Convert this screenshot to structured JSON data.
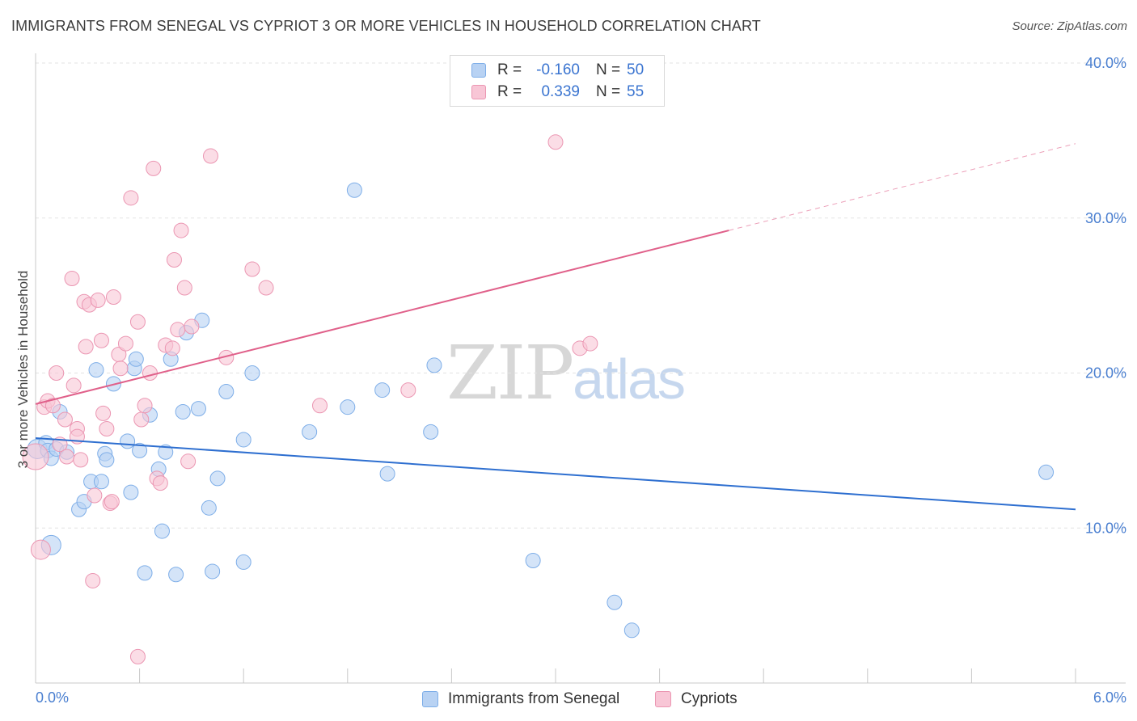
{
  "title": "IMMIGRANTS FROM SENEGAL VS CYPRIOT 3 OR MORE VEHICLES IN HOUSEHOLD CORRELATION CHART",
  "source": "Source: ZipAtlas.com",
  "watermark": {
    "zip": "ZIP",
    "atlas": "atlas"
  },
  "colors": {
    "blue_fill": "#b8d2f3",
    "blue_stroke": "#7eaee8",
    "blue_line": "#2e6fd0",
    "pink_fill": "#f8c6d6",
    "pink_stroke": "#eb96b2",
    "pink_line": "#e0608a",
    "tick_text": "#4a7fd0",
    "grid": "#e3e3e3"
  },
  "legend_top": {
    "rows": [
      {
        "r_label": "R =",
        "r_value": "-0.160",
        "n_label": "N =",
        "n_value": "50"
      },
      {
        "r_label": "R =",
        "r_value": "0.339",
        "n_label": "N =",
        "n_value": "55"
      }
    ]
  },
  "legend_bottom": {
    "items": [
      "Immigrants from Senegal",
      "Cypriots"
    ]
  },
  "chart_data": {
    "type": "scatter",
    "title": "IMMIGRANTS FROM SENEGAL VS CYPRIOT 3 OR MORE VEHICLES IN HOUSEHOLD CORRELATION CHART",
    "xlabel": "",
    "ylabel": "3 or more Vehicles in Household",
    "xlim": [
      0,
      6
    ],
    "ylim": [
      0,
      40
    ],
    "x_tick_labels": [
      "0.0%",
      "6.0%"
    ],
    "y_ticks": [
      10,
      20,
      30,
      40
    ],
    "y_tick_labels": [
      "10.0%",
      "20.0%",
      "30.0%",
      "40.0%"
    ],
    "grid": true,
    "legend_position": "top-center",
    "series": [
      {
        "name": "Immigrants from Senegal",
        "color": "#b8d2f3",
        "trend": {
          "x0": 0,
          "y0": 15.8,
          "x1": 6,
          "y1": 11.2
        },
        "points": [
          [
            0.01,
            15.1,
            "L"
          ],
          [
            0.06,
            15.5
          ],
          [
            0.07,
            15.0
          ],
          [
            0.09,
            14.5
          ],
          [
            0.12,
            15.1
          ],
          [
            0.14,
            17.5
          ],
          [
            0.18,
            14.9
          ],
          [
            0.25,
            11.2
          ],
          [
            0.28,
            11.7
          ],
          [
            0.32,
            13.0
          ],
          [
            0.35,
            20.2
          ],
          [
            0.38,
            13.0
          ],
          [
            0.4,
            14.8
          ],
          [
            0.41,
            14.4
          ],
          [
            0.45,
            19.3
          ],
          [
            0.53,
            15.6
          ],
          [
            0.55,
            12.3
          ],
          [
            0.57,
            20.3
          ],
          [
            0.58,
            20.9
          ],
          [
            0.6,
            15.0
          ],
          [
            0.63,
            7.1
          ],
          [
            0.66,
            17.3
          ],
          [
            0.71,
            13.8
          ],
          [
            0.73,
            9.8
          ],
          [
            0.75,
            14.9
          ],
          [
            0.78,
            20.9
          ],
          [
            0.81,
            7.0
          ],
          [
            0.85,
            17.5
          ],
          [
            0.87,
            22.6
          ],
          [
            0.94,
            17.7
          ],
          [
            0.96,
            23.4
          ],
          [
            1.0,
            11.3
          ],
          [
            1.02,
            7.2
          ],
          [
            1.05,
            13.2
          ],
          [
            1.1,
            18.8
          ],
          [
            1.2,
            15.7
          ],
          [
            1.2,
            7.8
          ],
          [
            1.25,
            20.0
          ],
          [
            1.58,
            16.2
          ],
          [
            1.8,
            17.8
          ],
          [
            1.84,
            31.8
          ],
          [
            2.0,
            18.9
          ],
          [
            2.03,
            13.5
          ],
          [
            2.28,
            16.2
          ],
          [
            2.3,
            20.5
          ],
          [
            2.87,
            7.9
          ],
          [
            3.34,
            5.2
          ],
          [
            3.44,
            3.4
          ],
          [
            5.83,
            13.6
          ],
          [
            0.09,
            8.9,
            "L"
          ]
        ]
      },
      {
        "name": "Cypriots",
        "color": "#f8c6d6",
        "trend": {
          "x0": 0,
          "y0": 18.0,
          "x1": 4.0,
          "y1": 29.2,
          "dash_x1": 6,
          "dash_y1": 34.8
        },
        "points": [
          [
            0.0,
            14.6,
            "XL"
          ],
          [
            0.03,
            8.6,
            "L"
          ],
          [
            0.05,
            17.8
          ],
          [
            0.07,
            18.2
          ],
          [
            0.1,
            17.9
          ],
          [
            0.12,
            20.0
          ],
          [
            0.14,
            15.4
          ],
          [
            0.17,
            17.0
          ],
          [
            0.18,
            14.6
          ],
          [
            0.21,
            26.1
          ],
          [
            0.22,
            19.2
          ],
          [
            0.24,
            16.4
          ],
          [
            0.26,
            14.4
          ],
          [
            0.28,
            24.6
          ],
          [
            0.29,
            21.7
          ],
          [
            0.31,
            24.4
          ],
          [
            0.33,
            6.6
          ],
          [
            0.34,
            12.1
          ],
          [
            0.36,
            24.7
          ],
          [
            0.38,
            22.1
          ],
          [
            0.39,
            17.4
          ],
          [
            0.41,
            16.4
          ],
          [
            0.43,
            11.6
          ],
          [
            0.45,
            24.9
          ],
          [
            0.48,
            21.2
          ],
          [
            0.49,
            20.3
          ],
          [
            0.52,
            21.9
          ],
          [
            0.55,
            31.3
          ],
          [
            0.59,
            23.3
          ],
          [
            0.61,
            17.0
          ],
          [
            0.63,
            17.9
          ],
          [
            0.66,
            20.0
          ],
          [
            0.68,
            33.2
          ],
          [
            0.7,
            13.2
          ],
          [
            0.72,
            12.9
          ],
          [
            0.75,
            21.8
          ],
          [
            0.79,
            21.6
          ],
          [
            0.8,
            27.3
          ],
          [
            0.82,
            22.8
          ],
          [
            0.84,
            29.2
          ],
          [
            0.86,
            25.5
          ],
          [
            0.88,
            14.3
          ],
          [
            0.9,
            23.0
          ],
          [
            1.01,
            34.0
          ],
          [
            1.1,
            21.0
          ],
          [
            1.25,
            26.7
          ],
          [
            1.33,
            25.5
          ],
          [
            1.64,
            17.9
          ],
          [
            0.59,
            1.7
          ],
          [
            2.15,
            18.9
          ],
          [
            3.0,
            34.9
          ],
          [
            3.14,
            21.6
          ],
          [
            3.2,
            21.9
          ],
          [
            0.24,
            15.9
          ],
          [
            0.44,
            11.7
          ]
        ]
      }
    ]
  }
}
